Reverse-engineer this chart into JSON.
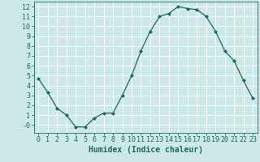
{
  "x": [
    0,
    1,
    2,
    3,
    4,
    5,
    6,
    7,
    8,
    9,
    10,
    11,
    12,
    13,
    14,
    15,
    16,
    17,
    18,
    19,
    20,
    21,
    22,
    23
  ],
  "y": [
    4.7,
    3.3,
    1.7,
    1.0,
    -0.2,
    -0.2,
    0.7,
    1.2,
    1.2,
    3.0,
    5.0,
    7.5,
    9.5,
    11.0,
    11.3,
    12.0,
    11.8,
    11.7,
    11.0,
    9.5,
    7.5,
    6.5,
    4.5,
    2.7
  ],
  "line_color": "#1a6b5a",
  "marker": "D",
  "marker_size": 2,
  "bg_color": "#cce8e8",
  "grid_color": "#ffffff",
  "xlabel": "Humidex (Indice chaleur)",
  "xlabel_fontsize": 7,
  "tick_fontsize": 6,
  "ylim": [
    -0.8,
    12.5
  ],
  "xlim": [
    -0.5,
    23.5
  ],
  "yticks": [
    0,
    1,
    2,
    3,
    4,
    5,
    6,
    7,
    8,
    9,
    10,
    11,
    12
  ],
  "ytick_labels": [
    "-0",
    "1",
    "2",
    "3",
    "4",
    "5",
    "6",
    "7",
    "8",
    "9",
    "10",
    "11",
    "12"
  ],
  "xticks": [
    0,
    1,
    2,
    3,
    4,
    5,
    6,
    7,
    8,
    9,
    10,
    11,
    12,
    13,
    14,
    15,
    16,
    17,
    18,
    19,
    20,
    21,
    22,
    23
  ]
}
